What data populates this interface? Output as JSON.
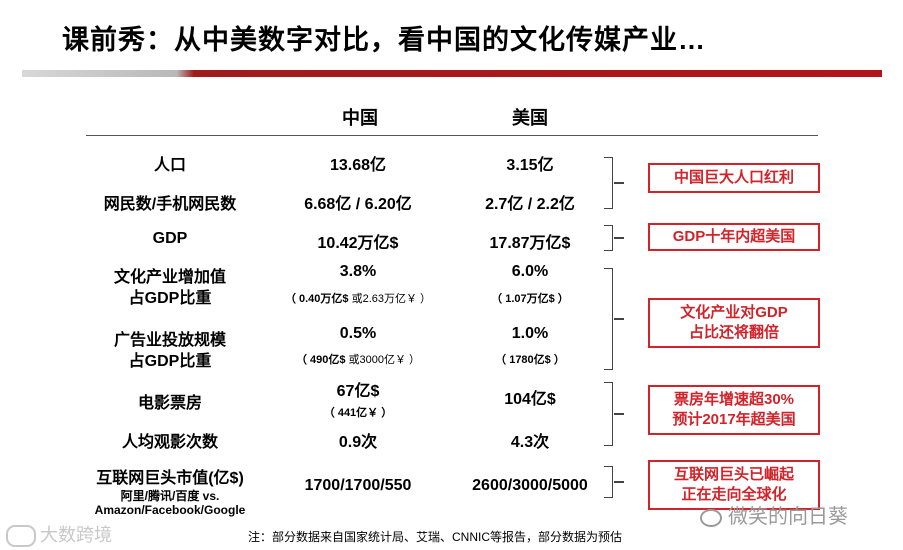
{
  "title": "课前秀：从中美数字对比，看中国的文化传媒产业…",
  "columns": {
    "china": "中国",
    "usa": "美国"
  },
  "rows": [
    {
      "label": "人口",
      "cn": "13.68亿",
      "us": "3.15亿"
    },
    {
      "label": "网民数/手机网民数",
      "cn": "6.68亿 / 6.20亿",
      "us": "2.7亿 / 2.2亿"
    },
    {
      "label": "GDP",
      "cn": "10.42万亿$",
      "us": "17.87万亿$"
    },
    {
      "label": "文化产业增加值",
      "label2": "占GDP比重",
      "cn": "3.8%",
      "cn_sub_a": "（ 0.40万亿$",
      "cn_sub_b": " 或2.63万亿￥ ）",
      "us": "6.0%",
      "us_sub": "（ 1.07万亿$ ）"
    },
    {
      "label": "广告业投放规模",
      "label2": "占GDP比重",
      "cn": "0.5%",
      "cn_sub_a": "（ 490亿$",
      "cn_sub_b": " 或3000亿￥ ）",
      "us": "1.0%",
      "us_sub": "（ 1780亿$ ）"
    },
    {
      "label": "电影票房",
      "cn": "67亿$",
      "cn_sub": "（ 441亿￥ ）",
      "us": "104亿$"
    },
    {
      "label": "人均观影次数",
      "cn": "0.9次",
      "us": "4.3次"
    },
    {
      "label": "互联网巨头市值(亿$)",
      "label2": "阿里/腾讯/百度 vs.",
      "label3": "Amazon/Facebook/Google",
      "cn": "1700/1700/550",
      "us": "2600/3000/5000"
    }
  ],
  "callouts": [
    {
      "line1": "中国巨大人口红利"
    },
    {
      "line1": "GDP十年内超美国"
    },
    {
      "line1": "文化产业对GDP",
      "line2": "占比还将翻倍"
    },
    {
      "line1": "票房年增速超30%",
      "line2": "预计2017年超美国"
    },
    {
      "line1": "互联网巨头已崛起",
      "line2": "正在走向全球化"
    }
  ],
  "note": "注：部分数据来自国家统计局、艾瑞、CNNIC等报告，部分数据为预估",
  "watermarks": {
    "left": "大数跨境",
    "right": "微笑的向日葵"
  }
}
